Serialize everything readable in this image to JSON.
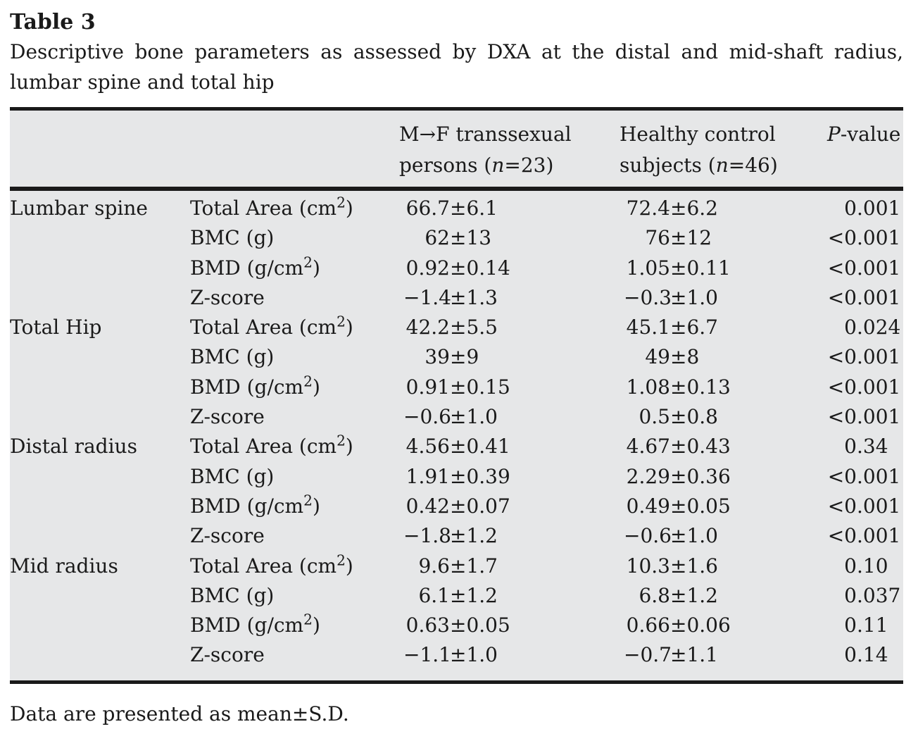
{
  "title": "Table 3",
  "caption": {
    "line1": "Descriptive bone parameters as assessed by DXA at the distal and mid-shaft radius,",
    "line2": "lumbar spine and total hip"
  },
  "table": {
    "header": {
      "site": "",
      "parameter": "",
      "mf_group": [
        "M→F transsexual",
        "persons (*n*=23)"
      ],
      "hc_group": [
        "Healthy control",
        "subjects (*n*=46)"
      ],
      "p": "*P*-value"
    },
    "sections": [
      {
        "site": "Lumbar spine",
        "rows": [
          {
            "param": "Total Area (cm^2)",
            "mf": "66.7±6.1",
            "hc": "72.4±6.2",
            "p": "0.001"
          },
          {
            "param": "BMC (g)",
            "mf": "62±13",
            "hc": "76±12",
            "p": "<0.001"
          },
          {
            "param": "BMD (g/cm^2)",
            "mf": "0.92±0.14",
            "hc": "1.05±0.11",
            "p": "<0.001"
          },
          {
            "param": "Z-score",
            "mf": "−1.4±1.3",
            "hc": "−0.3±1.0",
            "p": "<0.001"
          }
        ]
      },
      {
        "site": "Total Hip",
        "rows": [
          {
            "param": "Total Area (cm^2)",
            "mf": "42.2±5.5",
            "hc": "45.1±6.7",
            "p": "0.024"
          },
          {
            "param": "BMC (g)",
            "mf": "39±9",
            "hc": "49±8",
            "p": "<0.001"
          },
          {
            "param": "BMD (g/cm^2)",
            "mf": "0.91±0.15",
            "hc": "1.08±0.13",
            "p": "<0.001"
          },
          {
            "param": "Z-score",
            "mf": "−0.6±1.0",
            "hc": "0.5±0.8",
            "p": "<0.001"
          }
        ]
      },
      {
        "site": "Distal radius",
        "rows": [
          {
            "param": "Total Area (cm^2)",
            "mf": "4.56±0.41",
            "hc": "4.67±0.43",
            "p": "0.34"
          },
          {
            "param": "BMC (g)",
            "mf": "1.91±0.39",
            "hc": "2.29±0.36",
            "p": "<0.001"
          },
          {
            "param": "BMD (g/cm^2)",
            "mf": "0.42±0.07",
            "hc": "0.49±0.05",
            "p": "<0.001"
          },
          {
            "param": "Z-score",
            "mf": "−1.8±1.2",
            "hc": "−0.6±1.0",
            "p": "<0.001"
          }
        ]
      },
      {
        "site": "Mid radius",
        "rows": [
          {
            "param": "Total Area (cm^2)",
            "mf": "9.6±1.7",
            "hc": "10.3±1.6",
            "p": "0.10"
          },
          {
            "param": "BMC (g)",
            "mf": "6.1±1.2",
            "hc": "6.8±1.2",
            "p": "0.037"
          },
          {
            "param": "BMD (g/cm^2)",
            "mf": "0.63±0.05",
            "hc": "0.66±0.06",
            "p": "0.11"
          },
          {
            "param": "Z-score",
            "mf": "−1.1±1.0",
            "hc": "−0.7±1.1",
            "p": "0.14"
          }
        ]
      }
    ]
  },
  "footnote": "Data are presented as mean±S.D.",
  "colors": {
    "table_bg": "#e6e7e8",
    "rule": "#1a1a1a",
    "text": "#1a1a1a"
  }
}
